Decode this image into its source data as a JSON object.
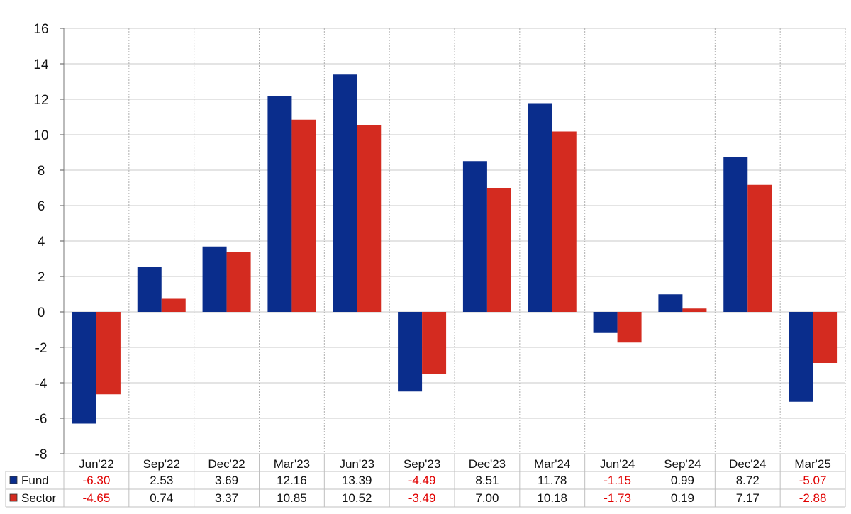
{
  "chart_data": {
    "type": "bar",
    "categories": [
      "Jun'22",
      "Sep'22",
      "Dec'22",
      "Mar'23",
      "Jun'23",
      "Sep'23",
      "Dec'23",
      "Mar'24",
      "Jun'24",
      "Sep'24",
      "Dec'24",
      "Mar'25"
    ],
    "series": [
      {
        "name": "Fund",
        "color": "#0a2d8c",
        "values": [
          -6.3,
          2.53,
          3.69,
          12.16,
          13.39,
          -4.49,
          8.51,
          11.78,
          -1.15,
          0.99,
          8.72,
          -5.07
        ],
        "labels": [
          "-6.30",
          "2.53",
          "3.69",
          "12.16",
          "13.39",
          "-4.49",
          "8.51",
          "11.78",
          "-1.15",
          "0.99",
          "8.72",
          "-5.07"
        ]
      },
      {
        "name": "Sector",
        "color": "#d42b20",
        "values": [
          -4.65,
          0.74,
          3.37,
          10.85,
          10.52,
          -3.49,
          7.0,
          10.18,
          -1.73,
          0.19,
          7.17,
          -2.88
        ],
        "labels": [
          "-4.65",
          "0.74",
          "3.37",
          "10.85",
          "10.52",
          "-3.49",
          "7.00",
          "10.18",
          "-1.73",
          "0.19",
          "7.17",
          "-2.88"
        ]
      }
    ],
    "ylim": [
      -8,
      16
    ],
    "yticks": [
      "16",
      "14",
      "12",
      "10",
      "8",
      "6",
      "4",
      "2",
      "0",
      "-2",
      "-4",
      "-6",
      "-8"
    ],
    "ytick_values": [
      16,
      14,
      12,
      10,
      8,
      6,
      4,
      2,
      0,
      -2,
      -4,
      -6,
      -8
    ],
    "grid": true,
    "legend": "table-below",
    "negative_label_color": "#e00000",
    "title": "",
    "xlabel": "",
    "ylabel": ""
  }
}
